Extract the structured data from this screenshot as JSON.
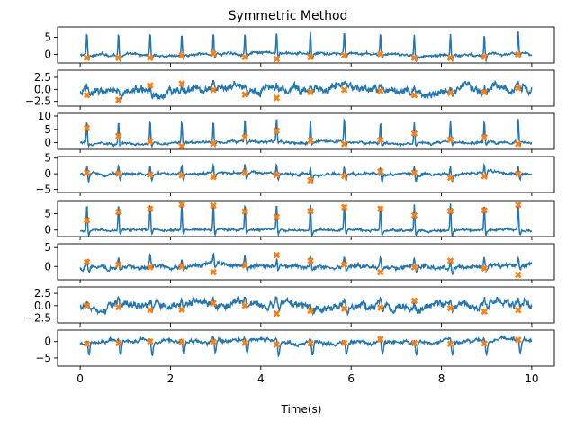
{
  "chart_data": {
    "type": "line",
    "title": "Symmetric Method",
    "xlabel": "Time(s)",
    "xlim": [
      -0.5,
      10.5
    ],
    "xticks": [
      0,
      2,
      4,
      6,
      8,
      10
    ],
    "xtick_labels": [
      "0",
      "2",
      "4",
      "6",
      "8",
      "10"
    ],
    "line_color": "#1f77b4",
    "marker_color": "#ff7f0e",
    "marker_symbol": "X",
    "marker_times": [
      0.15,
      0.85,
      1.55,
      2.25,
      2.95,
      3.65,
      4.35,
      5.1,
      5.85,
      6.65,
      7.4,
      8.2,
      8.95,
      9.7
    ],
    "channels": [
      {
        "ylim": [
          -2.5,
          8
        ],
        "yticks": [
          0,
          5
        ],
        "ytick_labels": [
          "0",
          "5"
        ],
        "baseline": 0,
        "noise": 0.4,
        "drift": 0.5,
        "spike_height": 6.5,
        "spike_dip": -1.2,
        "spike_width": 0.012,
        "marker_values": [
          -1,
          -1,
          -1,
          -0.3,
          0.2,
          -0.8,
          -1.3,
          -0.8,
          -0.3,
          0.1,
          -1,
          -1,
          -0.7,
          0
        ]
      },
      {
        "ylim": [
          -3.5,
          4
        ],
        "yticks": [
          -2.5,
          0,
          2.5
        ],
        "ytick_labels": [
          "−2.5",
          "0.0",
          "2.5"
        ],
        "baseline": 0,
        "noise": 0.9,
        "drift": 1.0,
        "spike_height": 0.8,
        "spike_dip": -0.6,
        "spike_width": 0.02,
        "marker_values": [
          -1.2,
          -2.2,
          0.8,
          1.2,
          -0.1,
          -1.1,
          -1.8,
          -0.6,
          -0.1,
          -0.3,
          -1.2,
          -0.7,
          -0.6,
          0.3
        ]
      },
      {
        "ylim": [
          -2.5,
          11
        ],
        "yticks": [
          0,
          5,
          10
        ],
        "ytick_labels": [
          "0",
          "5",
          "10"
        ],
        "baseline": 0,
        "noise": 0.5,
        "drift": 0.4,
        "spike_height": 8.5,
        "spike_dip": -1.0,
        "spike_width": 0.012,
        "marker_values": [
          5.5,
          2.5,
          0.5,
          -1.3,
          -0.3,
          2,
          4.5,
          0.8,
          -0.5,
          1,
          3.5,
          1.2,
          2,
          -0.5
        ]
      },
      {
        "ylim": [
          -6,
          5.5
        ],
        "yticks": [
          -5,
          0,
          5
        ],
        "ytick_labels": [
          "−5",
          "0",
          "5"
        ],
        "baseline": 0,
        "noise": 0.45,
        "drift": 0.4,
        "spike_height": 2.8,
        "spike_dip": -2.0,
        "spike_width": 0.012,
        "marker_values": [
          0.3,
          0,
          -0.3,
          -0.5,
          -1,
          0.3,
          -0.3,
          -2.1,
          -0.7,
          0.7,
          0.3,
          -1.3,
          -0.8,
          0
        ]
      },
      {
        "ylim": [
          -2,
          9
        ],
        "yticks": [
          0,
          5
        ],
        "ytick_labels": [
          "0",
          "5"
        ],
        "baseline": 0,
        "noise": 0.35,
        "drift": 0.3,
        "spike_height": 8.0,
        "spike_dip": -1.5,
        "spike_width": 0.012,
        "marker_values": [
          3,
          5.5,
          6.5,
          7.8,
          7.5,
          5.7,
          4,
          5.8,
          7,
          6.5,
          4.5,
          5.8,
          6,
          7.7
        ]
      },
      {
        "ylim": [
          -3.5,
          6
        ],
        "yticks": [
          -5,
          0,
          5
        ],
        "ytick_labels": [
          "−5",
          "0",
          "5"
        ],
        "baseline": 0,
        "noise": 0.6,
        "drift": 0.5,
        "spike_height": 2.5,
        "spike_dip": -1.0,
        "spike_width": 0.015,
        "marker_values": [
          1.2,
          0.5,
          -0.2,
          0,
          -1.5,
          0.3,
          3,
          1.5,
          0.5,
          -1.5,
          -0.2,
          1.5,
          -0.5,
          -2.2
        ]
      },
      {
        "ylim": [
          -3.5,
          3.8
        ],
        "yticks": [
          -2.5,
          0,
          2.5
        ],
        "ytick_labels": [
          "−2.5",
          "0.0",
          "2.5"
        ],
        "baseline": 0,
        "noise": 0.8,
        "drift": 1.0,
        "spike_height": 1.0,
        "spike_dip": -0.8,
        "spike_width": 0.02,
        "marker_values": [
          0,
          -0.3,
          -0.9,
          -0.8,
          0.5,
          0,
          -1.6,
          -1,
          -0.6,
          -0.4,
          1,
          -0.5,
          -1.2,
          -0.9
        ]
      },
      {
        "ylim": [
          -7.5,
          3.5
        ],
        "yticks": [
          -5,
          0
        ],
        "ytick_labels": [
          "−5",
          "0"
        ],
        "baseline": 0,
        "noise": 0.6,
        "drift": 0.8,
        "spike_height": 1.0,
        "spike_dip": -4.0,
        "spike_width": 0.015,
        "marker_values": [
          -0.7,
          -0.5,
          0,
          -0.1,
          -0.1,
          -0.4,
          -0.9,
          -0.5,
          -0.4,
          0.7,
          -0.5,
          -0.7,
          -0.6,
          0.5
        ]
      }
    ]
  }
}
